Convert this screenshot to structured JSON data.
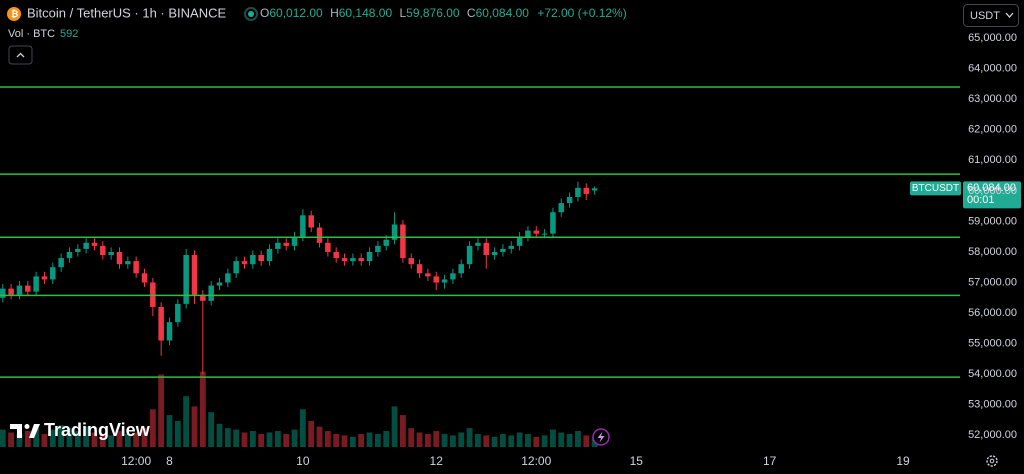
{
  "header": {
    "symbol": "Bitcoin / TetherUS · 1h · BINANCE",
    "ohlc": [
      {
        "key": "O",
        "value": "60,012.00"
      },
      {
        "key": "H",
        "value": "60,148.00"
      },
      {
        "key": "L",
        "value": "59,876.00"
      },
      {
        "key": "C",
        "value": "60,084.00"
      }
    ],
    "change": "+72.00 (+0.12%)",
    "volume_label": "Vol · BTC"
  },
  "currency_button": "USDT",
  "price_tag": {
    "symbol": "BTCUSDT",
    "countdown": "00:01"
  },
  "watermark": "TradingView",
  "chart_data": {
    "type": "candlestick",
    "x": [
      -12,
      -9,
      -6,
      -3,
      0,
      3,
      6,
      9,
      12,
      15,
      18,
      21,
      24,
      27,
      30,
      33,
      36,
      39,
      42,
      45,
      48,
      51,
      54,
      57,
      60,
      63,
      66,
      69,
      72,
      75,
      78,
      81,
      84,
      87,
      90,
      93,
      96,
      99,
      102,
      105,
      108,
      111,
      114,
      117,
      120,
      123,
      126,
      129,
      132,
      135,
      138,
      141,
      144,
      147,
      150,
      153,
      156,
      159,
      162,
      165,
      168,
      171,
      174,
      177,
      180,
      183,
      186,
      189,
      192,
      195,
      198,
      201
    ],
    "open": [
      56500,
      56800,
      56600,
      56900,
      56700,
      57200,
      57100,
      57500,
      57800,
      58000,
      58100,
      58300,
      58200,
      57900,
      58000,
      57600,
      57700,
      57300,
      57000,
      56200,
      55100,
      55700,
      56300,
      57900,
      56600,
      56400,
      56900,
      57000,
      57300,
      57700,
      57600,
      57900,
      57700,
      58100,
      58300,
      58200,
      58500,
      59200,
      58800,
      58300,
      58000,
      57800,
      57700,
      57800,
      57700,
      58000,
      58200,
      58400,
      58900,
      57800,
      57600,
      57300,
      57200,
      57000,
      57100,
      57300,
      57600,
      58200,
      58300,
      57900,
      58000,
      58100,
      58200,
      58500,
      58700,
      58600,
      58600,
      59300,
      59600,
      59800,
      60100,
      60012
    ],
    "high": [
      56950,
      56950,
      57050,
      57050,
      57350,
      57350,
      57650,
      57950,
      58150,
      58250,
      58450,
      58450,
      58350,
      58150,
      58150,
      57850,
      57850,
      57450,
      57150,
      56350,
      55850,
      56450,
      58100,
      58050,
      56750,
      57050,
      57150,
      57450,
      57850,
      57850,
      58050,
      58050,
      58250,
      58450,
      58450,
      58650,
      59400,
      59350,
      58950,
      58450,
      58150,
      57950,
      57950,
      57950,
      58150,
      58350,
      58550,
      59300,
      59050,
      57950,
      57750,
      57450,
      57350,
      57250,
      57450,
      57750,
      58350,
      58450,
      58450,
      58150,
      58250,
      58350,
      58650,
      58850,
      58850,
      58750,
      59450,
      59750,
      59950,
      60300,
      60250,
      60148
    ],
    "low": [
      56350,
      56450,
      56450,
      56550,
      56550,
      56950,
      56950,
      57350,
      57650,
      57850,
      57950,
      58050,
      57750,
      57750,
      57450,
      57450,
      57150,
      56850,
      55900,
      54600,
      54950,
      55550,
      56150,
      56300,
      54000,
      56250,
      56750,
      56850,
      57150,
      57450,
      57450,
      57550,
      57550,
      57950,
      58050,
      58050,
      58350,
      58650,
      58150,
      57850,
      57650,
      57550,
      57550,
      57550,
      57550,
      57850,
      58050,
      58250,
      57650,
      57450,
      57150,
      57050,
      56750,
      56800,
      56950,
      57150,
      57450,
      58050,
      57450,
      57750,
      57850,
      57950,
      58050,
      58350,
      58450,
      58450,
      58450,
      59150,
      59450,
      59650,
      59700,
      59876
    ],
    "close": [
      56800,
      56600,
      56900,
      56700,
      57200,
      57100,
      57500,
      57800,
      58000,
      58100,
      58300,
      58200,
      57900,
      58000,
      57600,
      57700,
      57300,
      57000,
      56200,
      55100,
      55700,
      56300,
      57900,
      56600,
      56400,
      56900,
      57000,
      57300,
      57700,
      57600,
      57900,
      57700,
      58100,
      58300,
      58200,
      58500,
      59200,
      58800,
      58300,
      58000,
      57800,
      57700,
      57800,
      57700,
      58000,
      58200,
      58400,
      58900,
      57800,
      57600,
      57300,
      57200,
      57000,
      57100,
      57300,
      57600,
      58200,
      58300,
      57900,
      58000,
      58100,
      58200,
      58500,
      58700,
      58600,
      58600,
      59300,
      59600,
      59800,
      60100,
      59900,
      60084
    ],
    "volume": [
      1200,
      1000,
      900,
      1100,
      1300,
      900,
      1200,
      1500,
      1300,
      1100,
      1400,
      1000,
      900,
      800,
      1100,
      900,
      1000,
      1300,
      2600,
      5000,
      2200,
      1800,
      3500,
      2800,
      5200,
      2400,
      1600,
      1300,
      1200,
      1000,
      1100,
      900,
      1000,
      1100,
      900,
      1200,
      2600,
      1800,
      1400,
      1100,
      900,
      800,
      700,
      900,
      1000,
      900,
      1100,
      2800,
      2200,
      1300,
      1000,
      900,
      1100,
      900,
      800,
      1000,
      1300,
      900,
      800,
      700,
      900,
      800,
      1000,
      900,
      700,
      800,
      1200,
      1000,
      900,
      1100,
      800,
      592
    ],
    "volume_lim": [
      0,
      6000
    ],
    "up_color": "#089981",
    "down_color": "#f23645",
    "level_color": "#2fbf3f",
    "levels": [
      63400,
      60550,
      58480,
      56580,
      53900
    ],
    "xlim": [
      -13,
      332.5
    ],
    "xticks": [
      {
        "value": 36,
        "label": "12:00"
      },
      {
        "value": 48,
        "label": "8"
      },
      {
        "value": 96,
        "label": "10"
      },
      {
        "value": 144,
        "label": "12"
      },
      {
        "value": 180,
        "label": "12:00"
      },
      {
        "value": 216,
        "label": "15"
      },
      {
        "value": 264,
        "label": "17"
      },
      {
        "value": 312,
        "label": "19"
      }
    ],
    "ylim": [
      51450,
      66250
    ],
    "yticks": [
      {
        "value": 52000,
        "label": "52,000.00"
      },
      {
        "value": 53000,
        "label": "53,000.00"
      },
      {
        "value": 54000,
        "label": "54,000.00"
      },
      {
        "value": 55000,
        "label": "55,000.00"
      },
      {
        "value": 56000,
        "label": "56,000.00"
      },
      {
        "value": 57000,
        "label": "57,000.00"
      },
      {
        "value": 58000,
        "label": "58,000.00"
      },
      {
        "value": 59000,
        "label": "59,000.00"
      },
      {
        "value": 60000,
        "label": "60,000.00"
      },
      {
        "value": 61000,
        "label": "61,000.00"
      },
      {
        "value": 62000,
        "label": "62,000.00"
      },
      {
        "value": 63000,
        "label": "63,000.00"
      },
      {
        "value": 64000,
        "label": "64,000.00"
      },
      {
        "value": 65000,
        "label": "65,000.00"
      }
    ],
    "grid": false
  }
}
